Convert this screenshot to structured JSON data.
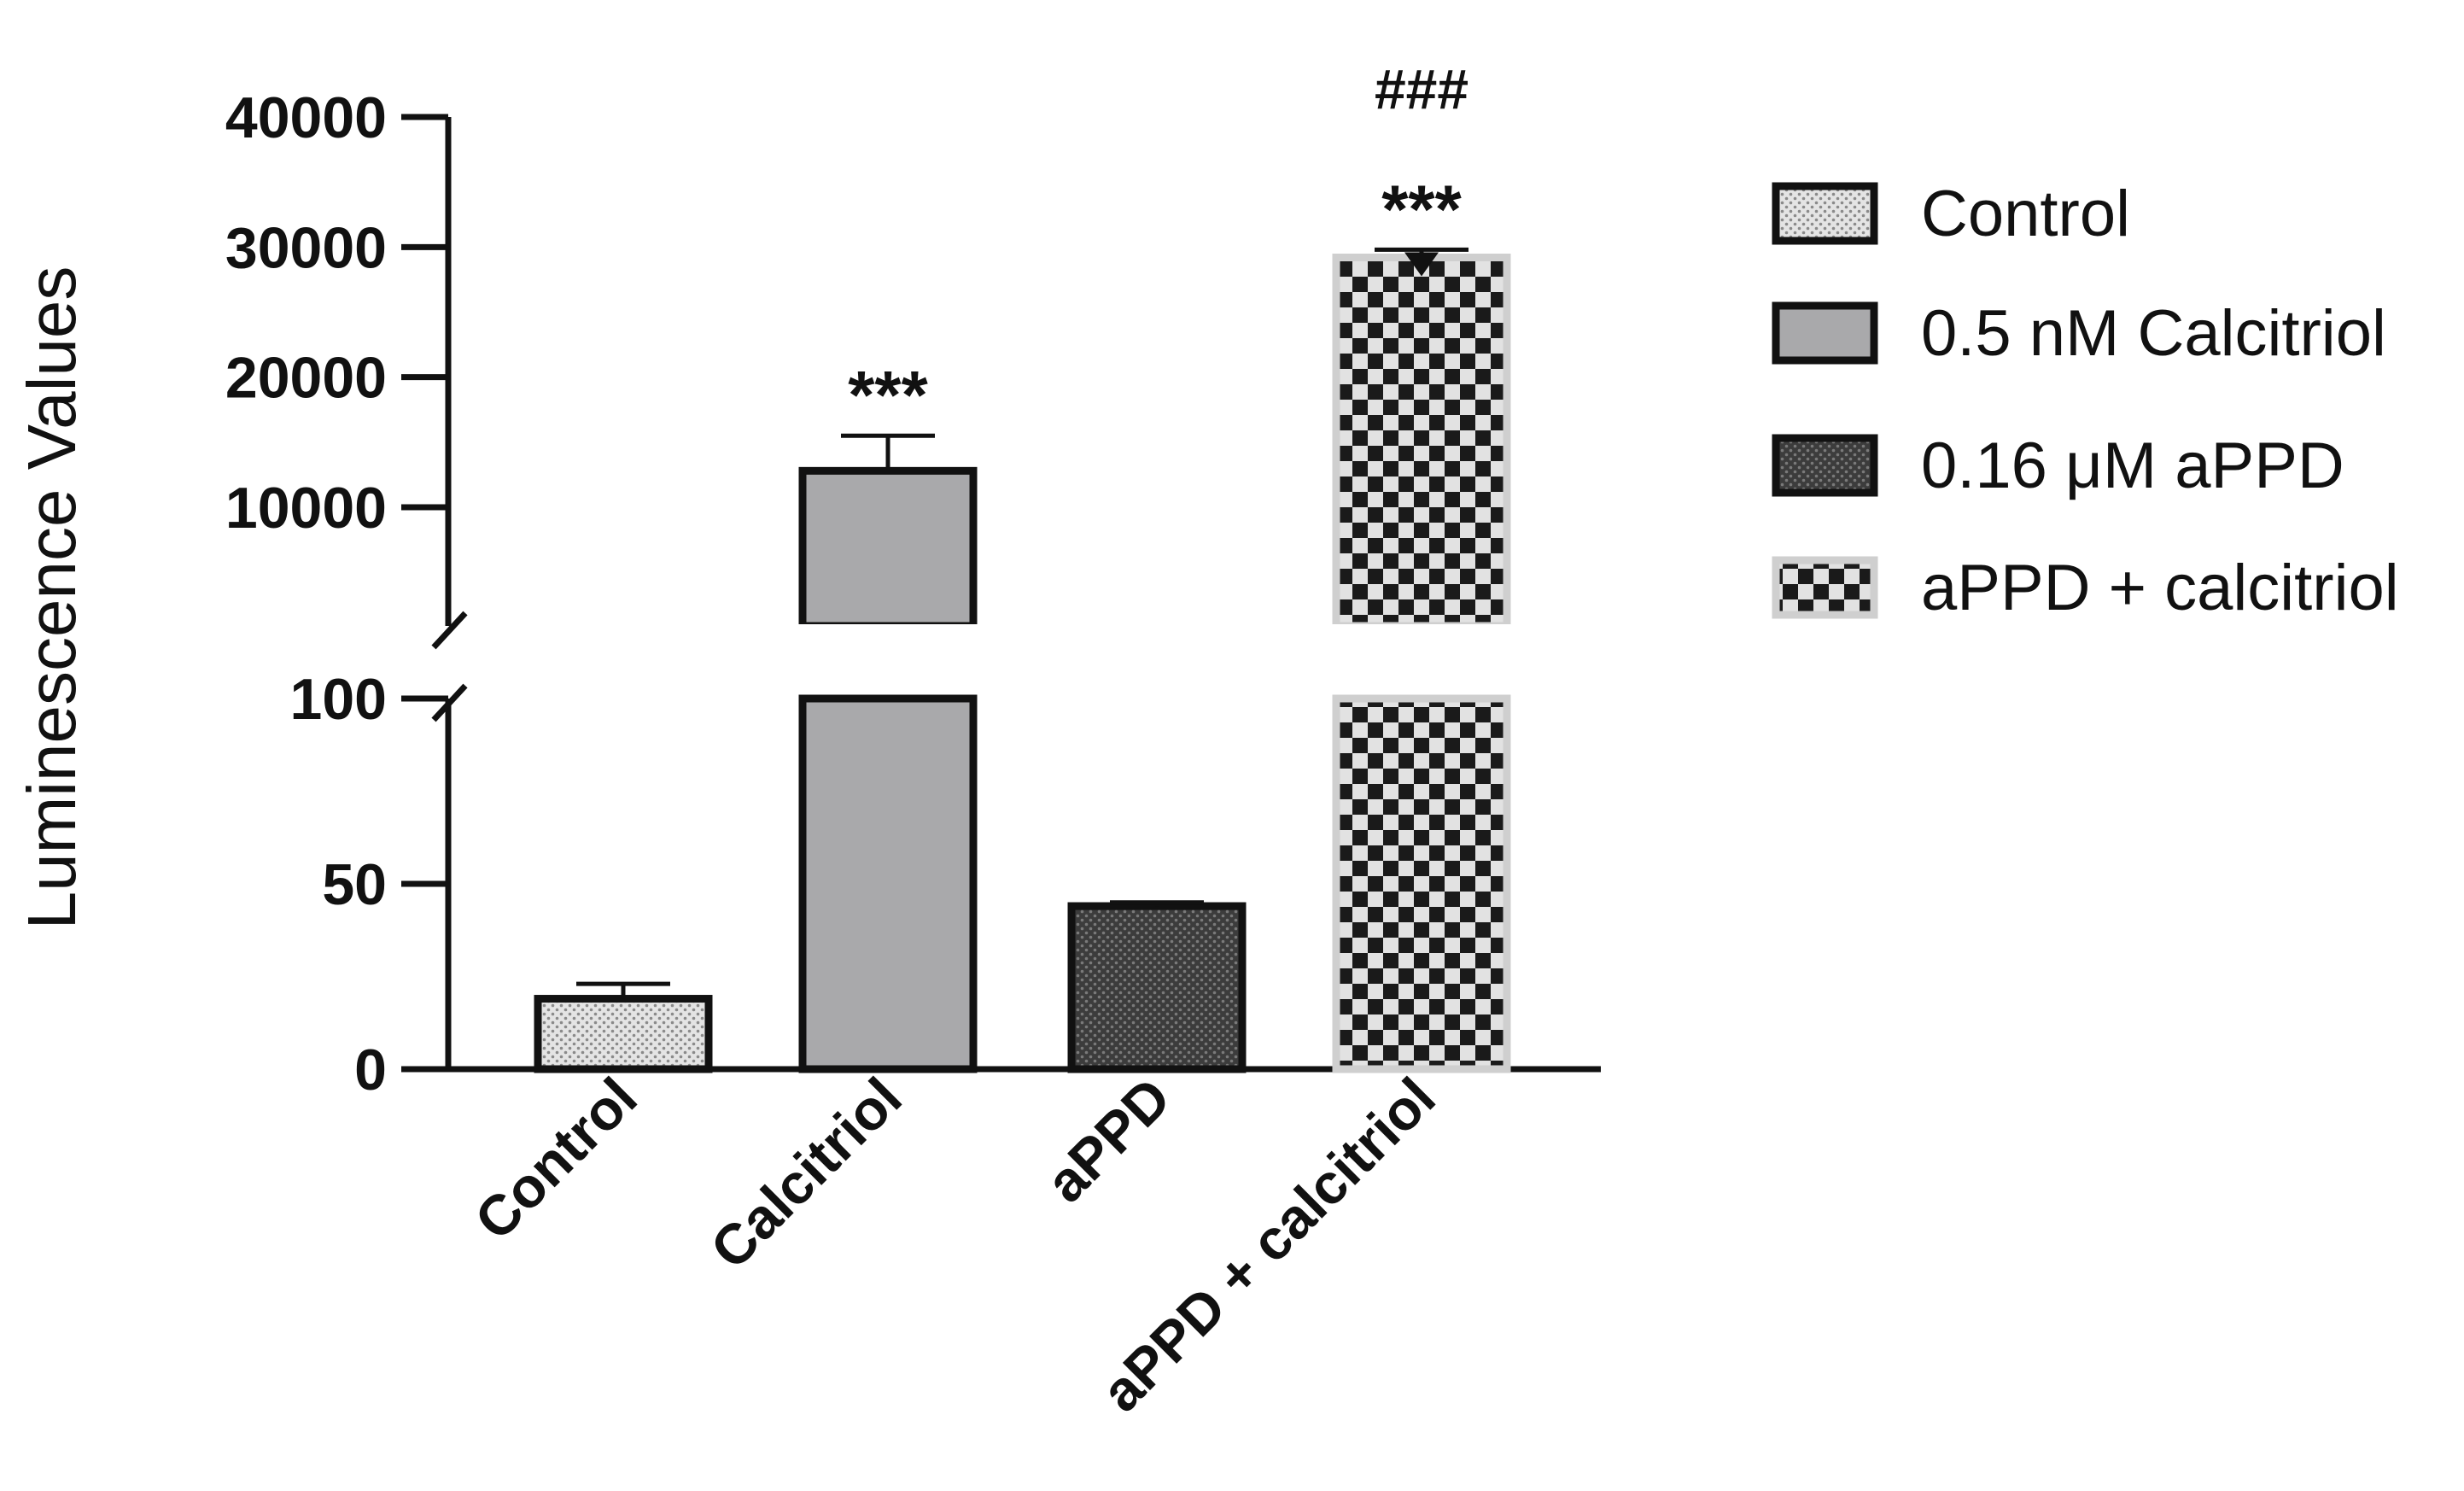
{
  "chart_data": {
    "type": "bar",
    "ylabel": "Luminescence Values",
    "categories": [
      "Control",
      "Calcitriol",
      "aPPD",
      "aPPD + calcitriol"
    ],
    "values": [
      19,
      12800,
      44,
      29200
    ],
    "errors": [
      4,
      2700,
      1,
      600
    ],
    "y_axis_break": {
      "lower_range": [
        0,
        100
      ],
      "upper_range": [
        0,
        40000
      ],
      "lower_ticks": [
        "0",
        "50",
        "100"
      ],
      "upper_ticks": [
        "10000",
        "20000",
        "30000",
        "40000"
      ]
    },
    "annotations": [
      {
        "category": "Calcitriol",
        "lines": [
          "***"
        ]
      },
      {
        "category": "aPPD + calcitriol",
        "lines": [
          "###",
          "***"
        ]
      }
    ],
    "legend": {
      "placement": "right",
      "entries": [
        {
          "label": "Control",
          "pattern": "dots-light"
        },
        {
          "label": "0.5 nM Calcitriol",
          "pattern": "solid-gray"
        },
        {
          "label": "0.16 μM aPPD",
          "pattern": "dots-dark"
        },
        {
          "label": "aPPD + calcitriol",
          "pattern": "checker"
        }
      ]
    },
    "colors": {
      "axis": "#111111",
      "calcitriol_fill": "#a9a9ab",
      "control_fill": "#d8d8d8",
      "appd_fill": "#4a4a4a",
      "checker_dark": "#1a1a1a",
      "checker_light": "#e2e2e2"
    },
    "grid": false
  }
}
